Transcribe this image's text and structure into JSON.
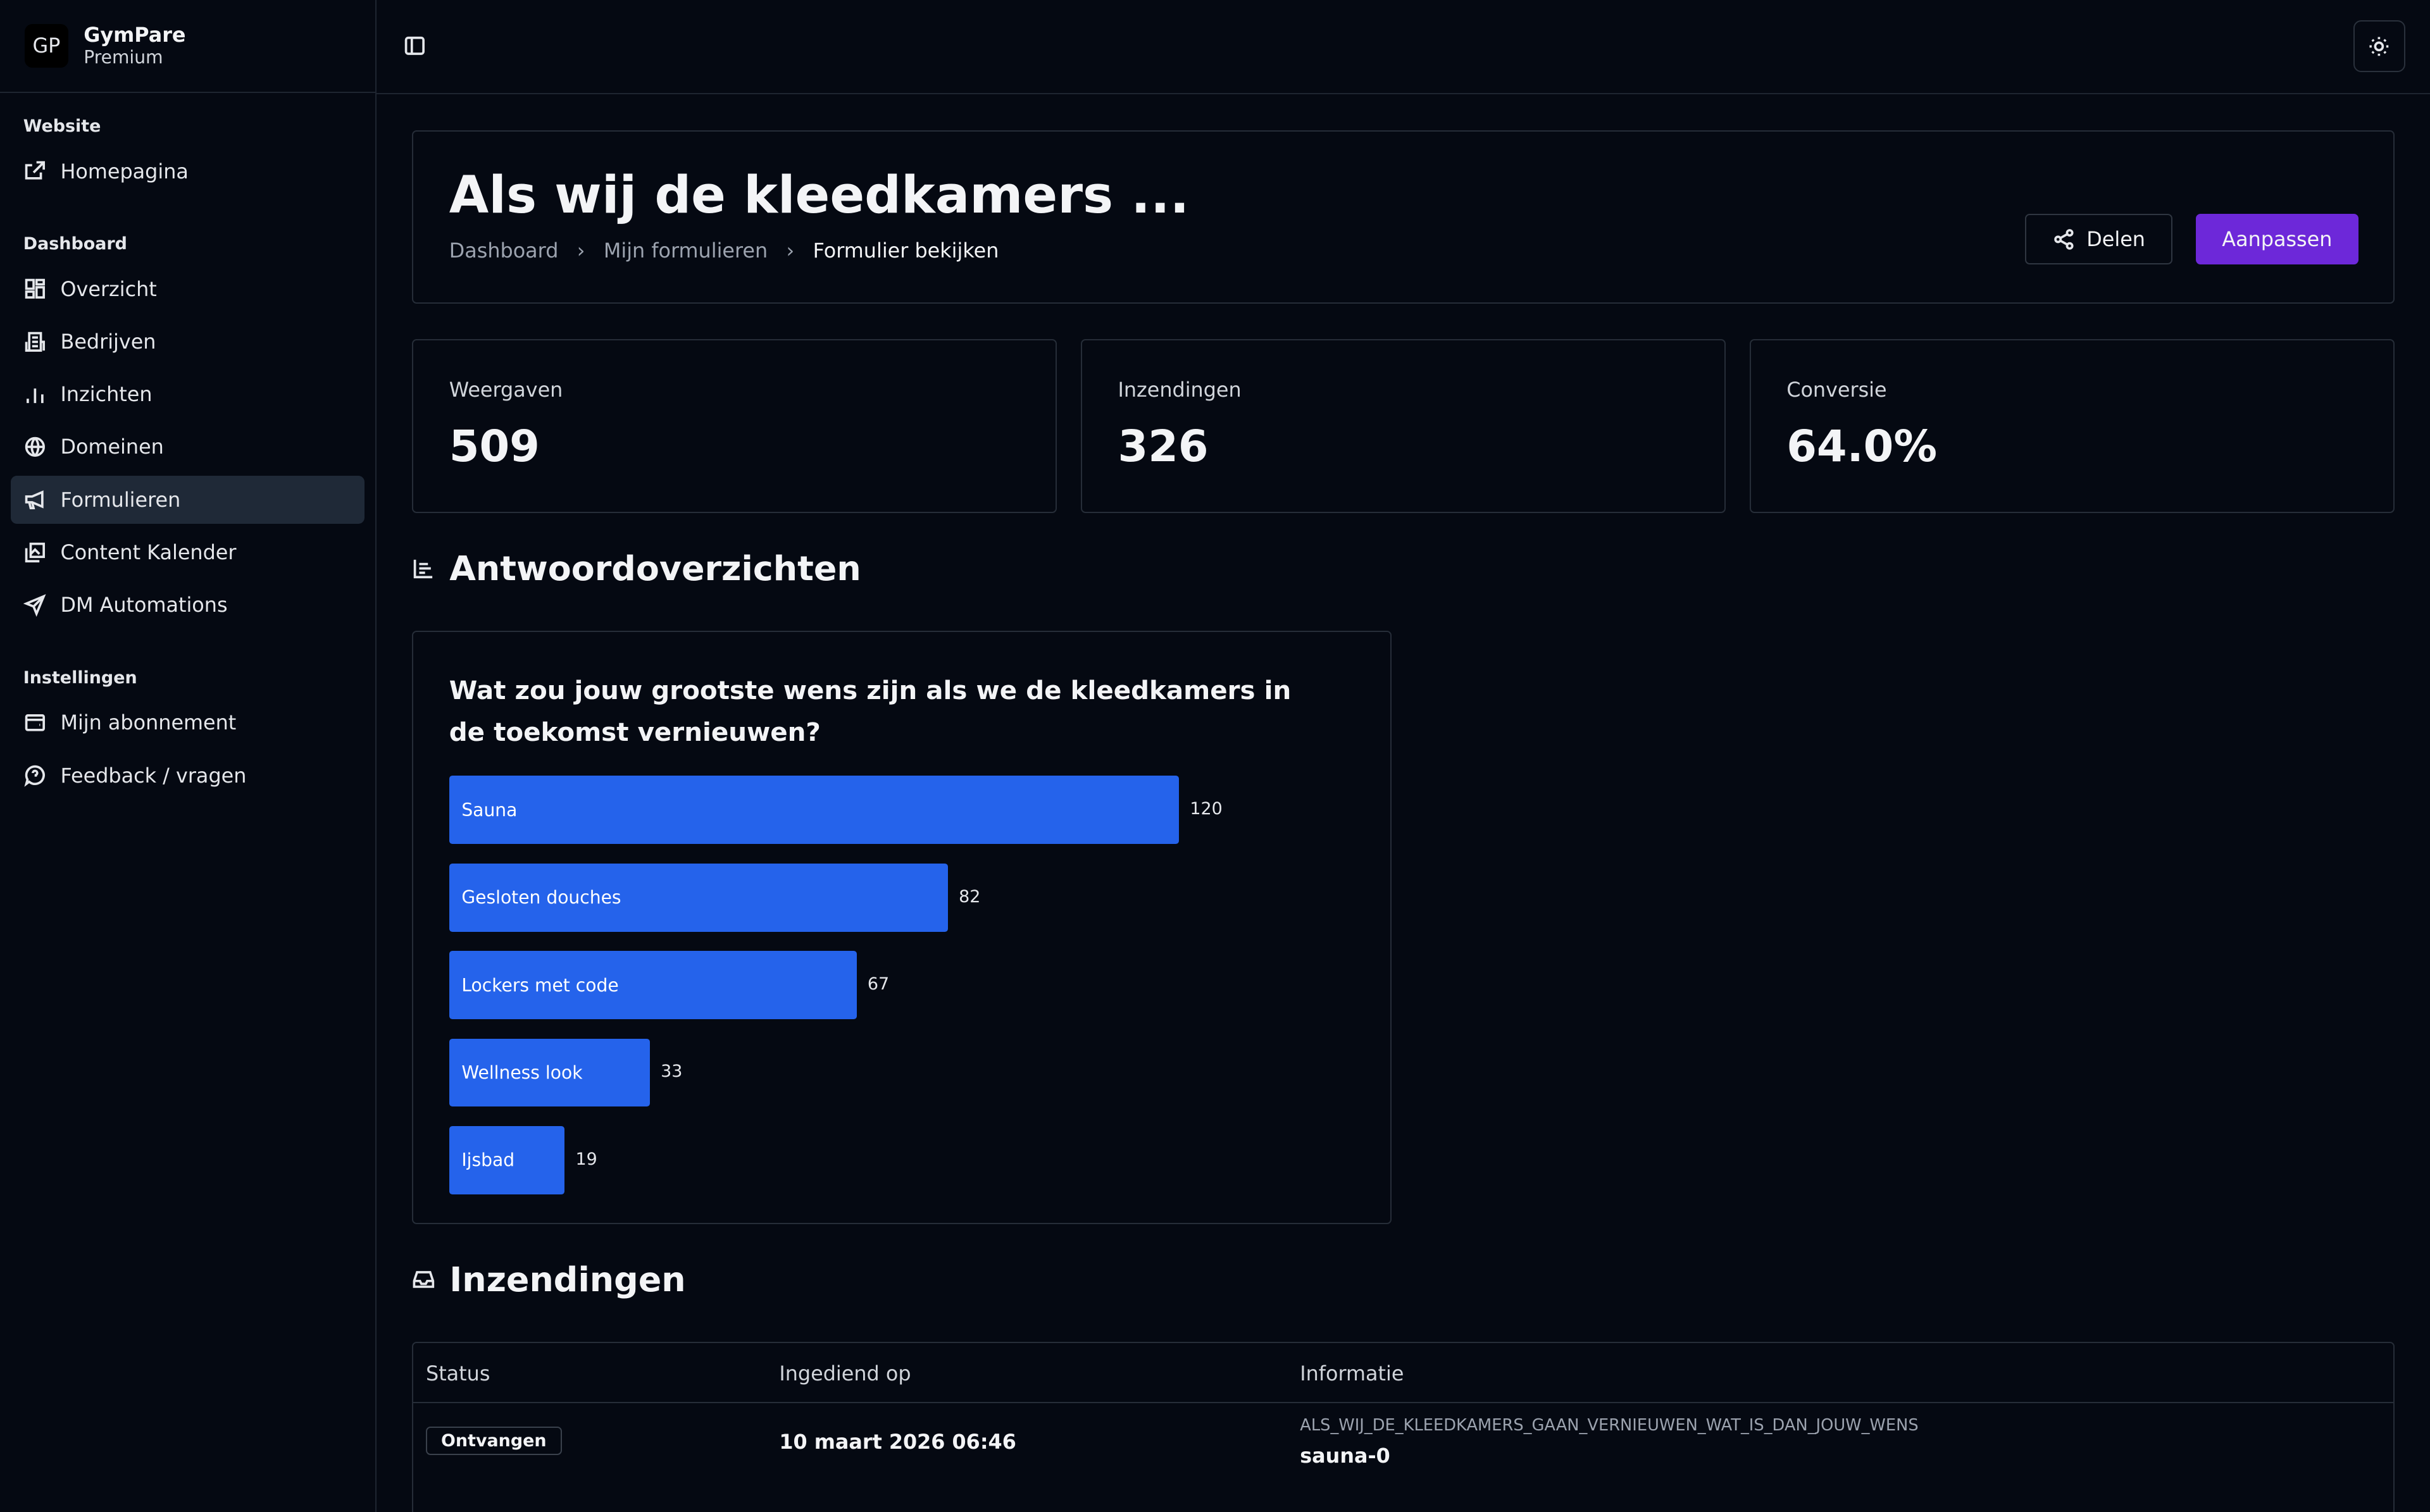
{
  "brand": {
    "initials": "GP",
    "name": "GymPare",
    "plan": "Premium"
  },
  "sidebar": {
    "sections": [
      {
        "title": "Website",
        "items": [
          {
            "label": "Homepagina",
            "icon": "external-link-icon"
          }
        ]
      },
      {
        "title": "Dashboard",
        "items": [
          {
            "label": "Overzicht",
            "icon": "dashboard-icon"
          },
          {
            "label": "Bedrijven",
            "icon": "building-icon"
          },
          {
            "label": "Inzichten",
            "icon": "bar-chart-icon"
          },
          {
            "label": "Domeinen",
            "icon": "globe-icon"
          },
          {
            "label": "Formulieren",
            "icon": "megaphone-icon",
            "active": true
          },
          {
            "label": "Content Kalender",
            "icon": "gallery-icon"
          },
          {
            "label": "DM Automations",
            "icon": "send-icon"
          }
        ]
      },
      {
        "title": "Instellingen",
        "items": [
          {
            "label": "Mijn abonnement",
            "icon": "wallet-icon"
          },
          {
            "label": "Feedback / vragen",
            "icon": "help-icon"
          }
        ]
      }
    ]
  },
  "header": {
    "title": "Als wij de kleedkamers ...",
    "breadcrumb": [
      "Dashboard",
      "Mijn formulieren",
      "Formulier bekijken"
    ],
    "share_label": "Delen",
    "edit_label": "Aanpassen"
  },
  "stats": [
    {
      "label": "Weergaven",
      "value": "509"
    },
    {
      "label": "Inzendingen",
      "value": "326"
    },
    {
      "label": "Conversie",
      "value": "64.0%"
    }
  ],
  "answers": {
    "heading": "Antwoordoverzichten",
    "chart_data": {
      "type": "bar",
      "orientation": "horizontal",
      "title": "Wat zou jouw grootste wens zijn als we de kleedkamers in de toekomst vernieuwen?",
      "categories": [
        "Sauna",
        "Gesloten douches",
        "Lockers met code",
        "Wellness look",
        "Ijsbad"
      ],
      "values": [
        120,
        82,
        67,
        33,
        19
      ],
      "color": "#2563eb"
    }
  },
  "submissions": {
    "heading": "Inzendingen",
    "columns": [
      "Status",
      "Ingediend op",
      "Informatie"
    ],
    "rows": [
      {
        "status": "Ontvangen",
        "date": "10 maart 2026 06:46",
        "key": "ALS_WIJ_DE_KLEEDKAMERS_GAAN_VERNIEUWEN_WAT_IS_DAN_JOUW_WENS",
        "value": "sauna-0"
      }
    ]
  },
  "colors": {
    "accent": "#6d28d9",
    "bar": "#2563eb",
    "background": "#050912"
  }
}
